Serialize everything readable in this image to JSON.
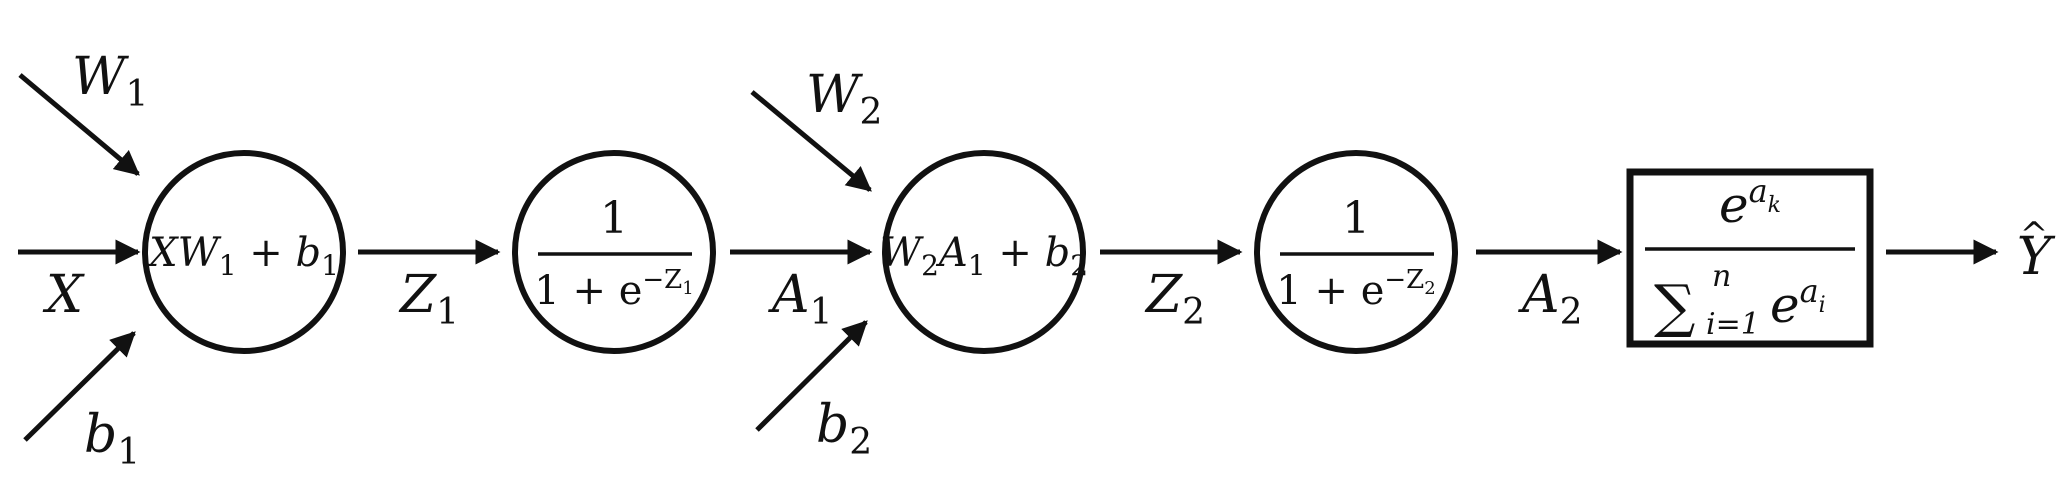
{
  "inputs": {
    "w1": {
      "main": "W",
      "sub": "1"
    },
    "b1": {
      "main": "b",
      "sub": "1"
    },
    "x": {
      "main": "X"
    },
    "w2": {
      "main": "W",
      "sub": "2"
    },
    "b2": {
      "main": "b",
      "sub": "2"
    }
  },
  "nodes": {
    "linear1": {
      "t1": "XW",
      "s1": "1",
      "op": " + ",
      "t2": "b",
      "s2": "1"
    },
    "sigmoid1": {
      "num": "1",
      "den": "1 + e",
      "exp_prefix": "−Z",
      "exp_sub": "1"
    },
    "linear2": {
      "t1": "W",
      "s1": "2",
      "t1b": "A",
      "s1b": "1",
      "op": " + ",
      "t2": "b",
      "s2": "2"
    },
    "sigmoid2": {
      "num": "1",
      "den": "1 + e",
      "exp_prefix": "−Z",
      "exp_sub": "2"
    },
    "softmax": {
      "num_base": "e",
      "num_exp": "a",
      "num_exp_sub": "k",
      "sigma": "∑",
      "lower": "i=1",
      "upper": "n",
      "den_base": "e",
      "den_exp": "a",
      "den_exp_sub": "i"
    }
  },
  "edges": {
    "z1": {
      "main": "Z",
      "sub": "1"
    },
    "a1": {
      "main": "A",
      "sub": "1"
    },
    "z2": {
      "main": "Z",
      "sub": "2"
    },
    "a2": {
      "main": "A",
      "sub": "2"
    }
  },
  "output": {
    "hat": "^",
    "main": "Y"
  }
}
